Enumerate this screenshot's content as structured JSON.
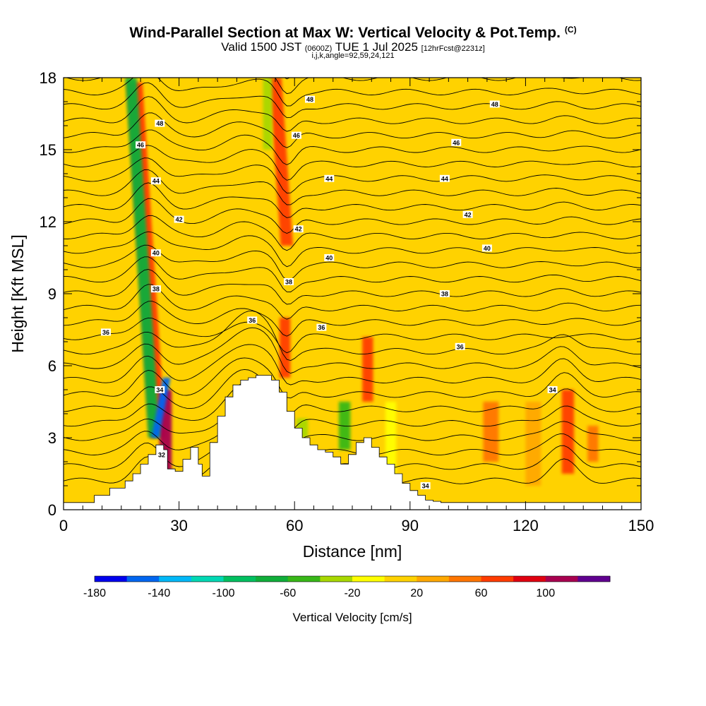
{
  "header": {
    "title": "Wind-Parallel Section at Max W: Vertical Velocity & Pot.Temp.",
    "copyright": "(C)",
    "valid_prefix": "Valid 1500 JST",
    "valid_zulu": "(0600Z)",
    "valid_date": "TUE 1 Jul 2025",
    "forecast": "[12hrFcst@2231z]",
    "params": "i,j,k,angle=92,59,24,121"
  },
  "chart_data": {
    "type": "heatmap",
    "title": "Wind-Parallel Section at Max W: Vertical Velocity & Pot.Temp.",
    "xlabel": "Distance [nm]",
    "ylabel": "Height [Kft MSL]",
    "xlim": [
      0,
      150
    ],
    "ylim": [
      0,
      18
    ],
    "xticks": [
      "0",
      "30",
      "60",
      "90",
      "120",
      "150"
    ],
    "yticks": [
      "0",
      "3",
      "6",
      "9",
      "12",
      "15",
      "18"
    ],
    "background_velocity": 10,
    "colorbar": {
      "title": "Vertical Velocity [cm/s]",
      "tick_labels": [
        "-180",
        "-140",
        "-100",
        "-60",
        "-20",
        "20",
        "60",
        "100"
      ],
      "levels": [
        -180,
        -160,
        -140,
        -120,
        -100,
        -80,
        -60,
        -40,
        -20,
        0,
        20,
        40,
        60,
        80,
        100,
        120
      ],
      "colors": [
        "#0000ee",
        "#0066f0",
        "#00b8f8",
        "#00d8b4",
        "#00c060",
        "#10ae3a",
        "#38b818",
        "#a8d800",
        "#ffff00",
        "#ffd200",
        "#ffa800",
        "#ff7600",
        "#ff3c00",
        "#e00010",
        "#a80050",
        "#600090"
      ]
    },
    "terrain": {
      "x": [
        0,
        4,
        8,
        12,
        16,
        18,
        20,
        22,
        24,
        26,
        27,
        29,
        31,
        33,
        35,
        36,
        38,
        40,
        42,
        44,
        46,
        48,
        50,
        52,
        54,
        56,
        58,
        60,
        62,
        64,
        66,
        68,
        70,
        72,
        74,
        76,
        78,
        80,
        82,
        84,
        86,
        88,
        90,
        92,
        94,
        96,
        98,
        100,
        150
      ],
      "y": [
        0.3,
        0.3,
        0.6,
        0.9,
        1.2,
        1.5,
        1.9,
        2.3,
        2.7,
        2.5,
        1.7,
        1.6,
        2.1,
        2.6,
        1.9,
        1.4,
        2.8,
        3.9,
        4.7,
        5.2,
        5.4,
        5.5,
        5.6,
        5.6,
        5.4,
        4.9,
        4.1,
        3.4,
        3.0,
        2.7,
        2.5,
        2.4,
        2.2,
        1.9,
        2.3,
        2.8,
        3.0,
        2.6,
        2.2,
        1.9,
        1.5,
        1.1,
        0.8,
        0.6,
        0.4,
        0.35,
        0.3,
        0.3,
        0.3
      ]
    },
    "updraft_streaks": [
      {
        "x": 24.5,
        "w": 2.0,
        "y0": 3.0,
        "y1": 17.8,
        "tilt": -6,
        "value": 70
      },
      {
        "x": 26.5,
        "w": 1.6,
        "y0": 1.5,
        "y1": 5.0,
        "tilt": 0,
        "value": 110
      },
      {
        "x": 58.0,
        "w": 1.6,
        "y0": 11.0,
        "y1": 18.0,
        "tilt": -3,
        "value": 70
      },
      {
        "x": 57.5,
        "w": 1.4,
        "y0": 5.5,
        "y1": 8.0,
        "tilt": 0,
        "value": 70
      },
      {
        "x": 79.0,
        "w": 1.4,
        "y0": 4.5,
        "y1": 7.2,
        "tilt": 0,
        "value": 70
      },
      {
        "x": 111.0,
        "w": 2.0,
        "y0": 2.0,
        "y1": 4.5,
        "tilt": 0,
        "value": 50
      },
      {
        "x": 122.0,
        "w": 2.0,
        "y0": 1.0,
        "y1": 4.5,
        "tilt": 0,
        "value": 30
      },
      {
        "x": 131.0,
        "w": 1.6,
        "y0": 1.5,
        "y1": 5.0,
        "tilt": 0,
        "value": 70
      },
      {
        "x": 137.5,
        "w": 1.4,
        "y0": 2.0,
        "y1": 3.5,
        "tilt": 0,
        "value": 50
      },
      {
        "x": 85.0,
        "w": 1.4,
        "y0": 1.0,
        "y1": 4.5,
        "tilt": 0,
        "value": -10
      }
    ],
    "downdraft_streaks": [
      {
        "x": 23.5,
        "w": 1.5,
        "y0": 3.0,
        "y1": 18.0,
        "tilt": -6,
        "value": -70
      },
      {
        "x": 23.8,
        "w": 1.0,
        "y0": 3.0,
        "y1": 5.5,
        "tilt": 3,
        "value": -150
      },
      {
        "x": 53.0,
        "w": 1.2,
        "y0": 15.0,
        "y1": 18.0,
        "tilt": 0,
        "value": -30
      },
      {
        "x": 73.0,
        "w": 1.5,
        "y0": 2.5,
        "y1": 4.5,
        "tilt": 0,
        "value": -60
      },
      {
        "x": 62.0,
        "w": 1.5,
        "y0": 3.0,
        "y1": 3.8,
        "tilt": 0,
        "value": -40
      }
    ],
    "isentrope_labels": [
      {
        "x": 25,
        "y": 16.1,
        "label": "48"
      },
      {
        "x": 64,
        "y": 17.1,
        "label": "48"
      },
      {
        "x": 112,
        "y": 16.9,
        "label": "48"
      },
      {
        "x": 20,
        "y": 15.2,
        "label": "46"
      },
      {
        "x": 60.5,
        "y": 15.6,
        "label": "46"
      },
      {
        "x": 102,
        "y": 15.3,
        "label": "46"
      },
      {
        "x": 24,
        "y": 13.7,
        "label": "44"
      },
      {
        "x": 69,
        "y": 13.8,
        "label": "44"
      },
      {
        "x": 99,
        "y": 13.8,
        "label": "44"
      },
      {
        "x": 30,
        "y": 12.1,
        "label": "42"
      },
      {
        "x": 61,
        "y": 11.7,
        "label": "42"
      },
      {
        "x": 105,
        "y": 12.3,
        "label": "42"
      },
      {
        "x": 24,
        "y": 10.7,
        "label": "40"
      },
      {
        "x": 69,
        "y": 10.5,
        "label": "40"
      },
      {
        "x": 110,
        "y": 10.9,
        "label": "40"
      },
      {
        "x": 24,
        "y": 9.2,
        "label": "38"
      },
      {
        "x": 58.5,
        "y": 9.5,
        "label": "38"
      },
      {
        "x": 99,
        "y": 9.0,
        "label": "38"
      },
      {
        "x": 11,
        "y": 7.4,
        "label": "36"
      },
      {
        "x": 49,
        "y": 7.9,
        "label": "36"
      },
      {
        "x": 67,
        "y": 7.6,
        "label": "36"
      },
      {
        "x": 103,
        "y": 6.8,
        "label": "36"
      },
      {
        "x": 127,
        "y": 5.0,
        "label": "34"
      },
      {
        "x": 25,
        "y": 5.0,
        "label": "34"
      },
      {
        "x": 25.5,
        "y": 2.3,
        "label": "32"
      },
      {
        "x": 94,
        "y": 1.0,
        "label": "34"
      }
    ]
  }
}
